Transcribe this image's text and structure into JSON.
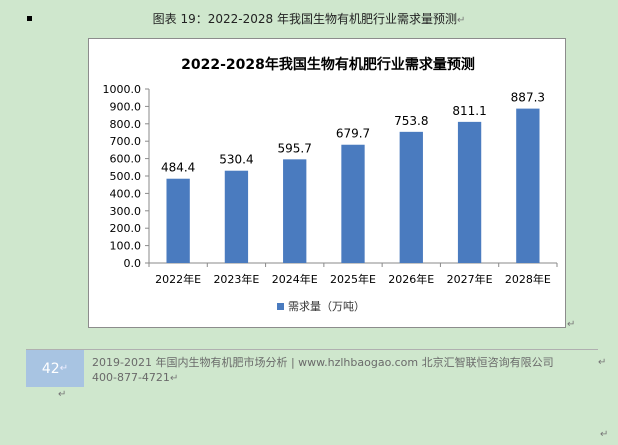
{
  "caption": "图表 19：2022-2028 年我国生物有机肥行业需求量预测",
  "para_mark": "↵",
  "chart_data": {
    "type": "bar",
    "title": "2022-2028年我国生物有机肥行业需求量预测",
    "categories": [
      "2022年E",
      "2023年E",
      "2024年E",
      "2025年E",
      "2026年E",
      "2027年E",
      "2028年E"
    ],
    "series": [
      {
        "name": "需求量（万吨）",
        "values": [
          484.4,
          530.4,
          595.7,
          679.7,
          753.8,
          811.1,
          887.3
        ]
      }
    ],
    "value_labels": [
      "484.4",
      "530.4",
      "595.7",
      "679.7",
      "753.8",
      "811.1",
      "887.3"
    ],
    "ylim": [
      0,
      1000
    ],
    "yticks": [
      "0.0",
      "100.0",
      "200.0",
      "300.0",
      "400.0",
      "500.0",
      "600.0",
      "700.0",
      "800.0",
      "900.0",
      "1000.0"
    ],
    "bar_color": "#4a7bbf",
    "legend_position": "bottom"
  },
  "footer": {
    "page_number": "42",
    "line1": "2019-2021 年国内生物有机肥市场分析 | www.hzlhbaogao.com 北京汇智联恒咨询有限公司",
    "line2": "400-877-4721"
  }
}
